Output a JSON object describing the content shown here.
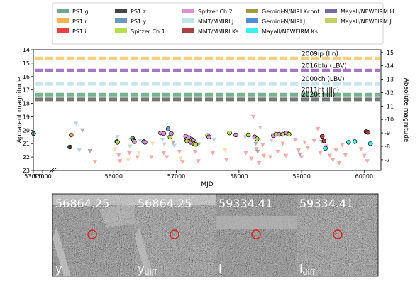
{
  "legend": [
    {
      "label": "PS1 g",
      "color": "#6fa88c",
      "kind": "bar"
    },
    {
      "label": "PS1 r",
      "color": "#f6b54c",
      "kind": "bar"
    },
    {
      "label": "PS1 i",
      "color": "#e8413f",
      "kind": "bar"
    },
    {
      "label": "PS1 z",
      "color": "#444444",
      "kind": "bar"
    },
    {
      "label": "PS1 y",
      "color": "#6e98bf",
      "kind": "bar"
    },
    {
      "label": "Spitzer Ch.1",
      "color": "#b7dd52",
      "kind": "bar"
    },
    {
      "label": "Spitzer Ch.2",
      "color": "#dd8fd9",
      "kind": "bar"
    },
    {
      "label": "MMT/MMIRI J",
      "color": "#bde4e8",
      "kind": "bar"
    },
    {
      "label": "MMT/MMIRI Ks",
      "color": "#a8413f",
      "kind": "bar"
    },
    {
      "label": "Gemini-N/NIRI Kcont",
      "color": "#a29a3c",
      "kind": "bar"
    },
    {
      "label": "Gemini-N/NIRI J",
      "color": "#4a8fd6",
      "kind": "bar"
    },
    {
      "label": "Mayall/NEWFIRM Ks",
      "color": "#38f2f0",
      "kind": "bar"
    },
    {
      "label": "Mayall/NEWFIRM H",
      "color": "#7a6aa0",
      "kind": "bar"
    },
    {
      "label": "Mayall/NEWFIRM J",
      "color": "#c4cf62",
      "kind": "bar"
    }
  ],
  "chart_data": {
    "type": "scatter",
    "xlabel": "MJD",
    "ylabel": "Apparent magnitude",
    "ylabel_right": "Absolute magnitude",
    "ylim": [
      23,
      14
    ],
    "y_right_lim": [
      -6.2,
      -15.2
    ],
    "x_ticks": [
      "53000",
      "55000",
      "56000",
      "57000",
      "58000",
      "59000",
      "60000"
    ],
    "y_ticks": [
      "14",
      "15",
      "16",
      "17",
      "18",
      "19",
      "20",
      "21",
      "22",
      "23"
    ],
    "y_right_ticks": [
      "-15",
      "-14",
      "-13",
      "-12",
      "-11",
      "-10",
      "-9",
      "-8",
      "-7"
    ],
    "reference_events": [
      {
        "label": "2009ip (IIn)",
        "mag": 14.65,
        "color": "#f6cf7e"
      },
      {
        "label": "2016blu (LBV)",
        "mag": 15.55,
        "color": "#a875c4"
      },
      {
        "label": "2000ch (LBV)",
        "mag": 16.55,
        "color": "#c5e6ee"
      },
      {
        "label": "2011ht (IIn)",
        "mag": 17.35,
        "color": "#75b38f"
      },
      {
        "label": "2020tlf (II)",
        "mag": 17.7,
        "color": "#777777"
      }
    ],
    "detections": [
      {
        "band": "PS1 g",
        "x": 53050,
        "y": 20.25
      },
      {
        "band": "PS1 z",
        "x": 55300,
        "y": 21.25
      },
      {
        "band": "PS1 r",
        "x": 55320,
        "y": 20.35
      },
      {
        "band": "PS1 g",
        "x": 56050,
        "y": 20.85
      },
      {
        "band": "Spitzer Ch.1",
        "x": 56060,
        "y": 20.9
      },
      {
        "band": "PS1 g",
        "x": 56300,
        "y": 20.6
      },
      {
        "band": "Spitzer Ch.1",
        "x": 56320,
        "y": 20.75
      },
      {
        "band": "Spitzer Ch.2",
        "x": 56330,
        "y": 20.85
      },
      {
        "band": "PS1 g",
        "x": 56480,
        "y": 20.85
      },
      {
        "band": "Spitzer Ch.2",
        "x": 56500,
        "y": 20.9
      },
      {
        "band": "Spitzer Ch.2",
        "x": 56750,
        "y": 20.2
      },
      {
        "band": "Spitzer Ch.2",
        "x": 56800,
        "y": 20.25
      },
      {
        "band": "PS1 y",
        "x": 56870,
        "y": 19.9
      },
      {
        "band": "Spitzer Ch.1",
        "x": 56900,
        "y": 20.5
      },
      {
        "band": "Spitzer Ch.2",
        "x": 56920,
        "y": 20.25
      },
      {
        "band": "Spitzer Ch.2",
        "x": 57150,
        "y": 20.45
      },
      {
        "band": "Spitzer Ch.2",
        "x": 57160,
        "y": 20.7
      },
      {
        "band": "Spitzer Ch.1",
        "x": 57170,
        "y": 20.8
      },
      {
        "band": "Spitzer Ch.2",
        "x": 57200,
        "y": 20.55
      },
      {
        "band": "Spitzer Ch.2",
        "x": 57230,
        "y": 20.9
      },
      {
        "band": "Spitzer Ch.1",
        "x": 57250,
        "y": 20.7
      },
      {
        "band": "Spitzer Ch.2",
        "x": 57270,
        "y": 20.75
      },
      {
        "band": "Gemini-N/NIRI Kcont",
        "x": 57280,
        "y": 21.0
      },
      {
        "band": "Spitzer Ch.1",
        "x": 57310,
        "y": 21.05
      },
      {
        "band": "Spitzer Ch.1",
        "x": 57500,
        "y": 20.4
      },
      {
        "band": "Spitzer Ch.2",
        "x": 57520,
        "y": 20.5
      },
      {
        "band": "Spitzer Ch.1",
        "x": 57850,
        "y": 20.2
      },
      {
        "band": "Spitzer Ch.2",
        "x": 57950,
        "y": 20.35
      },
      {
        "band": "Spitzer Ch.1",
        "x": 58150,
        "y": 20.35
      },
      {
        "band": "Spitzer Ch.2",
        "x": 58250,
        "y": 20.5
      },
      {
        "band": "Spitzer Ch.1",
        "x": 58290,
        "y": 20.65
      },
      {
        "band": "Spitzer Ch.2",
        "x": 58550,
        "y": 20.4
      },
      {
        "band": "Spitzer Ch.1",
        "x": 58590,
        "y": 20.3
      },
      {
        "band": "Spitzer Ch.2",
        "x": 58640,
        "y": 20.3
      },
      {
        "band": "Spitzer Ch.1",
        "x": 58700,
        "y": 20.3
      },
      {
        "band": "Spitzer Ch.2",
        "x": 58760,
        "y": 20.2
      },
      {
        "band": "Spitzer Ch.1",
        "x": 58800,
        "y": 20.3
      },
      {
        "band": "MMT/MMIRI Ks",
        "x": 59330,
        "y": 20.45
      },
      {
        "band": "MMT/MMIRI Ks",
        "x": 59360,
        "y": 20.8
      },
      {
        "band": "Mayall/NEWFIRM Ks",
        "x": 59380,
        "y": 21.35
      },
      {
        "band": "Mayall/NEWFIRM Ks",
        "x": 59750,
        "y": 20.9
      },
      {
        "band": "Mayall/NEWFIRM Ks",
        "x": 59850,
        "y": 20.85
      },
      {
        "band": "MMT/MMIRI Ks",
        "x": 60030,
        "y": 20.1
      },
      {
        "band": "MMT/MMIRI Ks",
        "x": 60060,
        "y": 20.15
      },
      {
        "band": "Mayall/NEWFIRM Ks",
        "x": 60100,
        "y": 21.0
      }
    ],
    "upper_limits": [
      {
        "band": "PS1 y",
        "x": 55400,
        "y": 19.5
      },
      {
        "band": "PS1 y",
        "x": 55450,
        "y": 21.5
      },
      {
        "band": "PS1 z",
        "x": 55500,
        "y": 20.0
      },
      {
        "band": "PS1 z",
        "x": 55620,
        "y": 21.55
      },
      {
        "band": "PS1 i",
        "x": 55700,
        "y": 22.35
      },
      {
        "band": "PS1 r",
        "x": 56020,
        "y": 21.4
      },
      {
        "band": "PS1 y",
        "x": 56060,
        "y": 20.5
      },
      {
        "band": "PS1 i",
        "x": 56080,
        "y": 21.85
      },
      {
        "band": "PS1 i",
        "x": 56100,
        "y": 22.3
      },
      {
        "band": "PS1 r",
        "x": 56230,
        "y": 22.2
      },
      {
        "band": "PS1 i",
        "x": 56250,
        "y": 21.7
      },
      {
        "band": "PS1 g",
        "x": 56260,
        "y": 21.2
      },
      {
        "band": "PS1 y",
        "x": 56280,
        "y": 20.7
      },
      {
        "band": "PS1 i",
        "x": 56380,
        "y": 22.0
      },
      {
        "band": "PS1 r",
        "x": 56400,
        "y": 21.65
      },
      {
        "band": "PS1 y",
        "x": 56420,
        "y": 20.75
      },
      {
        "band": "PS1 i",
        "x": 56600,
        "y": 22.0
      },
      {
        "band": "PS1 r",
        "x": 56620,
        "y": 21.0
      },
      {
        "band": "PS1 y",
        "x": 56780,
        "y": 20.7
      },
      {
        "band": "PS1 i",
        "x": 56800,
        "y": 21.7
      },
      {
        "band": "PS1 y",
        "x": 56810,
        "y": 21.05
      },
      {
        "band": "PS1 i",
        "x": 56850,
        "y": 22.0
      },
      {
        "band": "PS1 z",
        "x": 56950,
        "y": 20.9
      },
      {
        "band": "PS1 y",
        "x": 56970,
        "y": 21.15
      },
      {
        "band": "PS1 i",
        "x": 57050,
        "y": 21.6
      },
      {
        "band": "PS1 r",
        "x": 57070,
        "y": 22.1
      },
      {
        "band": "PS1 i",
        "x": 57100,
        "y": 22.35
      },
      {
        "band": "PS1 i",
        "x": 57300,
        "y": 21.6
      },
      {
        "band": "PS1 i",
        "x": 57350,
        "y": 22.3
      },
      {
        "band": "PS1 z",
        "x": 57360,
        "y": 21.05
      },
      {
        "band": "PS1 i",
        "x": 57580,
        "y": 21.7
      },
      {
        "band": "PS1 y",
        "x": 57600,
        "y": 20.7
      },
      {
        "band": "PS1 r",
        "x": 57780,
        "y": 21.5
      },
      {
        "band": "PS1 i",
        "x": 57800,
        "y": 22.2
      },
      {
        "band": "PS1 y",
        "x": 58100,
        "y": 20.5
      },
      {
        "band": "PS1 i",
        "x": 58110,
        "y": 21.7
      },
      {
        "band": "PS1 i",
        "x": 58200,
        "y": 22.1
      },
      {
        "band": "PS1 i",
        "x": 58230,
        "y": 19.0
      },
      {
        "band": "PS1 y",
        "x": 58260,
        "y": 20.6
      },
      {
        "band": "PS1 z",
        "x": 58270,
        "y": 21.0
      },
      {
        "band": "PS1 i",
        "x": 58280,
        "y": 21.4
      },
      {
        "band": "PS1 z",
        "x": 58300,
        "y": 21.6
      },
      {
        "band": "PS1 i",
        "x": 58320,
        "y": 22.45
      },
      {
        "band": "PS1 y",
        "x": 58340,
        "y": 19.8
      },
      {
        "band": "PS1 i",
        "x": 58380,
        "y": 21.1
      },
      {
        "band": "PS1 i",
        "x": 58400,
        "y": 21.9
      },
      {
        "band": "PS1 i",
        "x": 58500,
        "y": 22.0
      },
      {
        "band": "PS1 y",
        "x": 58520,
        "y": 20.75
      },
      {
        "band": "PS1 i",
        "x": 58620,
        "y": 21.6
      },
      {
        "band": "PS1 i",
        "x": 58700,
        "y": 21.0
      },
      {
        "band": "PS1 i",
        "x": 58750,
        "y": 21.9
      },
      {
        "band": "PS1 i",
        "x": 58900,
        "y": 20.7
      },
      {
        "band": "PS1 i",
        "x": 58950,
        "y": 21.5
      },
      {
        "band": "PS1 z",
        "x": 58970,
        "y": 21.8
      },
      {
        "band": "PS1 i",
        "x": 59000,
        "y": 22.0
      },
      {
        "band": "PS1 i",
        "x": 59050,
        "y": 20.9
      },
      {
        "band": "PS1 i",
        "x": 59100,
        "y": 21.3
      },
      {
        "band": "PS1 i",
        "x": 59200,
        "y": 20.8
      },
      {
        "band": "PS1 i",
        "x": 59260,
        "y": 19.9
      },
      {
        "band": "PS1 i",
        "x": 59300,
        "y": 21.7
      },
      {
        "band": "PS1 z",
        "x": 59320,
        "y": 20.85
      },
      {
        "band": "PS1 i",
        "x": 59400,
        "y": 21.2
      },
      {
        "band": "PS1 i",
        "x": 59450,
        "y": 21.9
      },
      {
        "band": "PS1 i",
        "x": 59500,
        "y": 22.2
      },
      {
        "band": "PS1 i",
        "x": 59550,
        "y": 21.5
      },
      {
        "band": "PS1 i",
        "x": 59600,
        "y": 22.45
      },
      {
        "band": "PS1 i",
        "x": 59650,
        "y": 21.1
      },
      {
        "band": "PS1 i",
        "x": 59700,
        "y": 21.85
      },
      {
        "band": "PS1 i",
        "x": 59950,
        "y": 21.4
      },
      {
        "band": "PS1 i",
        "x": 60000,
        "y": 21.9
      },
      {
        "band": "PS1 i",
        "x": 60050,
        "y": 22.3
      }
    ]
  },
  "cutouts": [
    {
      "mjd": "56864.25",
      "band": "y",
      "sub": ""
    },
    {
      "mjd": "56864.25",
      "band": "y",
      "sub": "diff"
    },
    {
      "mjd": "59334.41",
      "band": "i",
      "sub": ""
    },
    {
      "mjd": "59334.41",
      "band": "i",
      "sub": "diff"
    }
  ]
}
